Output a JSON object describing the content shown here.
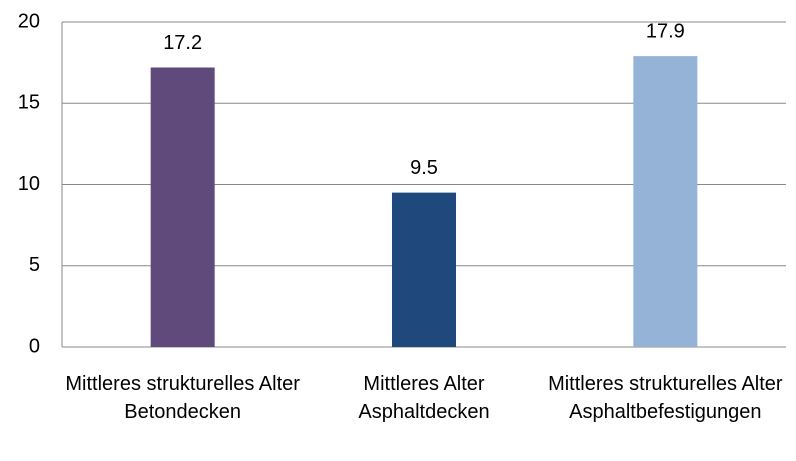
{
  "chart_data": {
    "type": "bar",
    "categories": [
      "Mittleres strukturelles Alter Betondecken",
      "Mittleres Alter Asphaltdecken",
      "Mittleres strukturelles Alter Asphaltbefestigungen"
    ],
    "values": [
      17.2,
      9.5,
      17.9
    ],
    "colors": [
      "#604a7b",
      "#1f497d",
      "#95b3d7"
    ],
    "ylim": [
      0,
      20
    ],
    "yticks": [
      0,
      5,
      10,
      15,
      20
    ],
    "grid": true
  }
}
